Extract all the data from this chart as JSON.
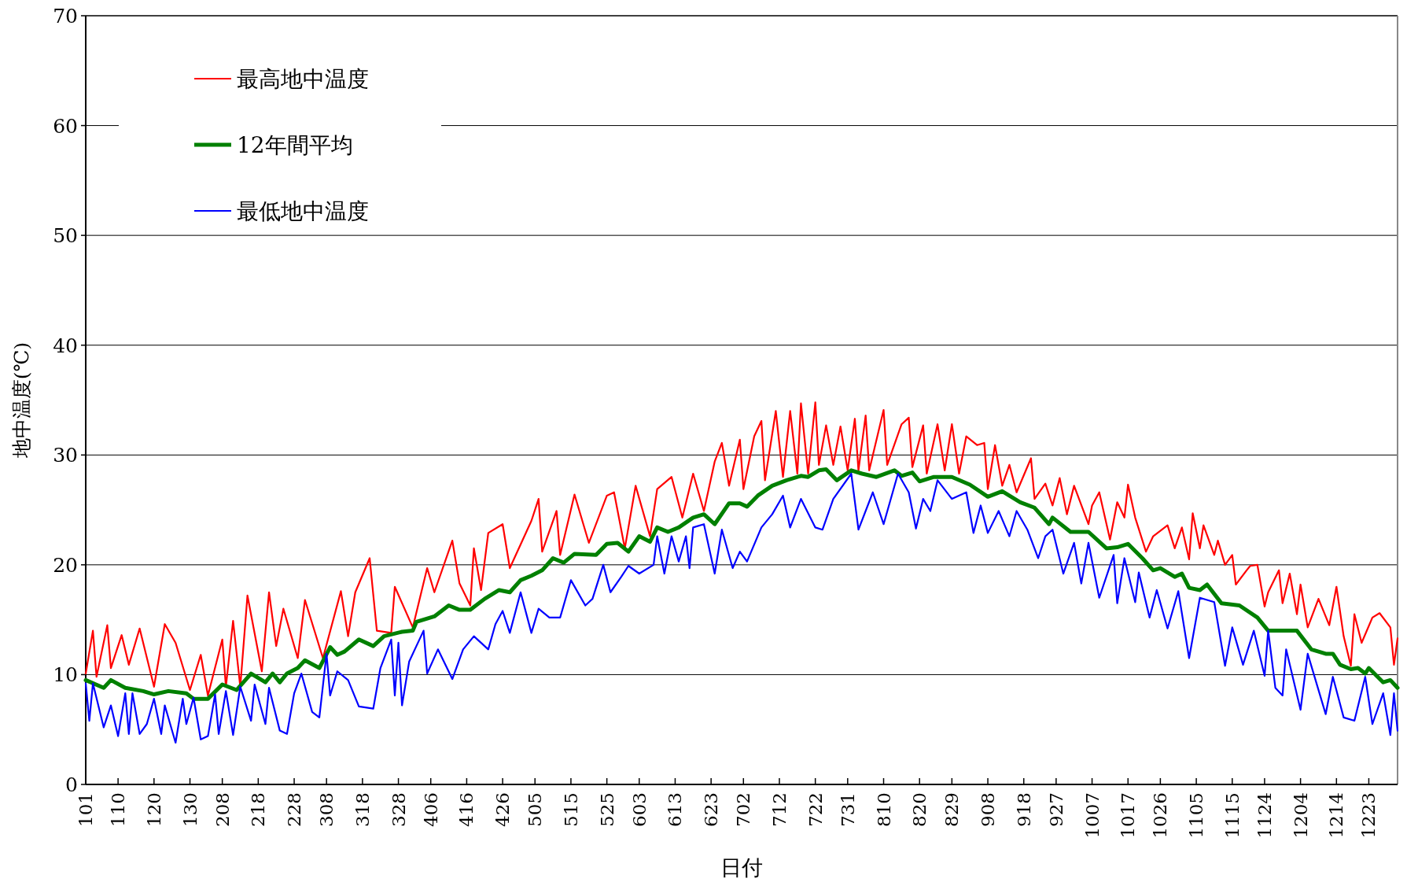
{
  "chart_data": {
    "type": "line",
    "xlabel": "日付",
    "ylabel": "地中温度(℃)",
    "xlim": [
      "--01-01",
      "--12-31"
    ],
    "ylim": [
      0,
      70
    ],
    "yticks": [
      0,
      10,
      20,
      30,
      40,
      50,
      60,
      70
    ],
    "xticks": [
      {
        "value": "--01-01",
        "label": "101"
      },
      {
        "value": "--01-10",
        "label": "110"
      },
      {
        "value": "--01-20",
        "label": "120"
      },
      {
        "value": "--01-30",
        "label": "130"
      },
      {
        "value": "--02-08",
        "label": "208"
      },
      {
        "value": "--02-18",
        "label": "218"
      },
      {
        "value": "--02-28",
        "label": "228"
      },
      {
        "value": "--03-08",
        "label": "308"
      },
      {
        "value": "--03-18",
        "label": "318"
      },
      {
        "value": "--03-28",
        "label": "328"
      },
      {
        "value": "--04-06",
        "label": "406"
      },
      {
        "value": "--04-16",
        "label": "416"
      },
      {
        "value": "--04-26",
        "label": "426"
      },
      {
        "value": "--05-05",
        "label": "505"
      },
      {
        "value": "--05-15",
        "label": "515"
      },
      {
        "value": "--05-25",
        "label": "525"
      },
      {
        "value": "--06-03",
        "label": "603"
      },
      {
        "value": "--06-13",
        "label": "613"
      },
      {
        "value": "--06-23",
        "label": "623"
      },
      {
        "value": "--07-02",
        "label": "702"
      },
      {
        "value": "--07-12",
        "label": "712"
      },
      {
        "value": "--07-22",
        "label": "722"
      },
      {
        "value": "--07-31",
        "label": "731"
      },
      {
        "value": "--08-10",
        "label": "810"
      },
      {
        "value": "--08-20",
        "label": "820"
      },
      {
        "value": "--08-29",
        "label": "829"
      },
      {
        "value": "--09-08",
        "label": "908"
      },
      {
        "value": "--09-18",
        "label": "918"
      },
      {
        "value": "--09-27",
        "label": "927"
      },
      {
        "value": "--10-07",
        "label": "1007"
      },
      {
        "value": "--10-17",
        "label": "1017"
      },
      {
        "value": "--10-26",
        "label": "1026"
      },
      {
        "value": "--11-05",
        "label": "1105"
      },
      {
        "value": "--11-15",
        "label": "1115"
      },
      {
        "value": "--11-24",
        "label": "1124"
      },
      {
        "value": "--12-04",
        "label": "1204"
      },
      {
        "value": "--12-14",
        "label": "1214"
      },
      {
        "value": "--12-23",
        "label": "1223"
      }
    ],
    "grid": "y",
    "legend": "top left",
    "line_style": "solid",
    "marker": "none",
    "series": [
      {
        "name": "最高地中温度",
        "color": "#ff0000",
        "x": [
          "--01-01",
          "--01-03",
          "--01-04",
          "--01-07",
          "--01-08",
          "--01-11",
          "--01-13",
          "--01-16",
          "--01-20",
          "--01-23",
          "--01-26",
          "--01-30",
          "--02-02",
          "--02-04",
          "--02-08",
          "--02-09",
          "--02-11",
          "--02-13",
          "--02-15",
          "--02-19",
          "--02-21",
          "--02-23",
          "--02-25",
          "--02-29",
          "--03-02",
          "--03-07",
          "--03-12",
          "--03-14",
          "--03-16",
          "--03-20",
          "--03-22",
          "--03-26",
          "--03-27",
          "--04-01",
          "--04-05",
          "--04-07",
          "--04-12",
          "--04-14",
          "--04-17",
          "--04-18",
          "--04-20",
          "--04-22",
          "--04-26",
          "--04-28",
          "--05-04",
          "--05-06",
          "--05-07",
          "--05-11",
          "--05-12",
          "--05-16",
          "--05-20",
          "--05-25",
          "--05-27",
          "--05-30",
          "--06-02",
          "--06-06",
          "--06-08",
          "--06-12",
          "--06-15",
          "--06-18",
          "--06-21",
          "--06-24",
          "--06-26",
          "--06-28",
          "--07-01",
          "--07-02",
          "--07-05",
          "--07-07",
          "--07-08",
          "--07-11",
          "--07-13",
          "--07-15",
          "--07-17",
          "--07-18",
          "--07-20",
          "--07-22",
          "--07-23",
          "--07-25",
          "--07-27",
          "--07-29",
          "--07-31",
          "--08-02",
          "--08-03",
          "--08-05",
          "--08-06",
          "--08-10",
          "--08-11",
          "--08-15",
          "--08-17",
          "--08-18",
          "--08-21",
          "--08-22",
          "--08-25",
          "--08-27",
          "--08-29",
          "--08-31",
          "--09-02",
          "--09-05",
          "--09-07",
          "--09-08",
          "--09-10",
          "--09-12",
          "--09-14",
          "--09-16",
          "--09-20",
          "--09-21",
          "--09-24",
          "--09-26",
          "--09-28",
          "--09-30",
          "--10-02",
          "--10-06",
          "--10-07",
          "--10-09",
          "--10-12",
          "--10-14",
          "--10-16",
          "--10-17",
          "--10-19",
          "--10-22",
          "--10-24",
          "--10-28",
          "--10-30",
          "--11-01",
          "--11-03",
          "--11-04",
          "--11-06",
          "--11-07",
          "--11-10",
          "--11-11",
          "--11-13",
          "--11-15",
          "--11-16",
          "--11-19",
          "--11-20",
          "--11-22",
          "--11-24",
          "--11-25",
          "--11-28",
          "--11-29",
          "--12-01",
          "--12-03",
          "--12-04",
          "--12-06",
          "--12-09",
          "--12-12",
          "--12-14",
          "--12-16",
          "--12-18",
          "--12-19",
          "--12-21",
          "--12-24",
          "--12-26",
          "--12-29",
          "--12-30",
          "--12-31"
        ],
        "values": [
          10.1,
          14.0,
          9.8,
          14.5,
          10.6,
          13.6,
          10.9,
          14.2,
          8.9,
          14.6,
          12.9,
          8.6,
          11.8,
          8.1,
          13.2,
          8.9,
          14.9,
          8.9,
          17.2,
          10.3,
          17.5,
          12.6,
          16.0,
          11.5,
          16.8,
          11.5,
          17.6,
          13.5,
          17.5,
          20.6,
          14.0,
          13.8,
          18.0,
          14.3,
          19.7,
          17.5,
          22.2,
          18.3,
          16.3,
          21.5,
          17.7,
          22.9,
          23.7,
          19.7,
          24.0,
          26.0,
          21.2,
          24.9,
          20.9,
          26.4,
          22.0,
          26.3,
          26.6,
          21.5,
          27.2,
          22.6,
          26.9,
          28.0,
          24.3,
          28.3,
          24.9,
          29.4,
          31.1,
          27.2,
          31.4,
          26.9,
          31.7,
          33.1,
          27.7,
          34.0,
          28.0,
          34.0,
          28.3,
          34.7,
          28.3,
          34.8,
          29.1,
          32.7,
          29.1,
          32.6,
          28.6,
          33.3,
          28.6,
          33.6,
          28.6,
          34.1,
          29.1,
          32.8,
          33.4,
          28.9,
          32.7,
          28.3,
          32.8,
          28.6,
          32.8,
          28.3,
          31.7,
          30.9,
          31.1,
          26.9,
          30.9,
          27.2,
          29.1,
          26.6,
          29.7,
          26.0,
          27.4,
          25.4,
          27.9,
          24.6,
          27.2,
          23.7,
          25.4,
          26.6,
          22.3,
          25.7,
          24.3,
          27.3,
          24.3,
          21.2,
          22.6,
          23.6,
          21.5,
          23.4,
          20.5,
          24.7,
          21.5,
          23.6,
          20.9,
          22.2,
          20.0,
          20.9,
          18.2,
          19.5,
          19.9,
          20.0,
          16.2,
          17.5,
          19.5,
          16.5,
          19.2,
          15.5,
          18.2,
          14.3,
          16.9,
          14.5,
          18.0,
          13.5,
          10.8,
          15.5,
          12.9,
          15.2,
          15.6,
          14.3,
          10.9,
          13.3
        ]
      },
      {
        "name": "12年間平均",
        "color": "#008000",
        "x": [
          "--01-01",
          "--01-06",
          "--01-08",
          "--01-12",
          "--01-17",
          "--01-20",
          "--01-24",
          "--01-29",
          "--01-31",
          "--02-04",
          "--02-08",
          "--02-12",
          "--02-16",
          "--02-20",
          "--02-22",
          "--02-24",
          "--02-26",
          "--02-29",
          "--03-02",
          "--03-06",
          "--03-09",
          "--03-11",
          "--03-13",
          "--03-17",
          "--03-21",
          "--03-24",
          "--03-29",
          "--04-01",
          "--04-02",
          "--04-07",
          "--04-11",
          "--04-14",
          "--04-17",
          "--04-21",
          "--04-25",
          "--04-28",
          "--05-01",
          "--05-04",
          "--05-07",
          "--05-10",
          "--05-13",
          "--05-16",
          "--05-22",
          "--05-25",
          "--05-28",
          "--05-31",
          "--06-03",
          "--06-06",
          "--06-08",
          "--06-11",
          "--06-14",
          "--06-18",
          "--06-21",
          "--06-24",
          "--06-28",
          "--07-01",
          "--07-03",
          "--07-06",
          "--07-10",
          "--07-14",
          "--07-18",
          "--07-20",
          "--07-23",
          "--07-25",
          "--07-28",
          "--08-01",
          "--08-04",
          "--08-08",
          "--08-13",
          "--08-15",
          "--08-18",
          "--08-20",
          "--08-24",
          "--08-29",
          "--09-03",
          "--09-08",
          "--09-12",
          "--09-17",
          "--09-21",
          "--09-25",
          "--09-26",
          "--10-01",
          "--10-06",
          "--10-11",
          "--10-14",
          "--10-17",
          "--10-21",
          "--10-24",
          "--10-26",
          "--10-30",
          "--11-01",
          "--11-03",
          "--11-06",
          "--11-08",
          "--11-12",
          "--11-17",
          "--11-22",
          "--11-25",
          "--11-29",
          "--12-03",
          "--12-07",
          "--12-11",
          "--12-13",
          "--12-15",
          "--12-18",
          "--12-20",
          "--12-22",
          "--12-23",
          "--12-27",
          "--12-29",
          "--12-31"
        ],
        "values": [
          9.5,
          8.8,
          9.5,
          8.8,
          8.5,
          8.2,
          8.5,
          8.3,
          7.8,
          7.8,
          9.1,
          8.6,
          10.1,
          9.3,
          10.1,
          9.3,
          10.1,
          10.6,
          11.3,
          10.6,
          12.5,
          11.8,
          12.1,
          13.2,
          12.6,
          13.5,
          13.9,
          14.0,
          14.8,
          15.3,
          16.3,
          15.9,
          15.9,
          16.9,
          17.7,
          17.5,
          18.6,
          19.0,
          19.5,
          20.6,
          20.2,
          21.0,
          20.9,
          21.9,
          22.0,
          21.2,
          22.6,
          22.1,
          23.4,
          23.0,
          23.4,
          24.3,
          24.6,
          23.7,
          25.6,
          25.6,
          25.3,
          26.3,
          27.2,
          27.7,
          28.1,
          28.0,
          28.6,
          28.7,
          27.7,
          28.6,
          28.3,
          28.0,
          28.6,
          28.1,
          28.4,
          27.6,
          28.0,
          28.0,
          27.3,
          26.2,
          26.7,
          25.7,
          25.2,
          23.7,
          24.3,
          23.0,
          23.0,
          21.5,
          21.6,
          21.9,
          20.6,
          19.5,
          19.7,
          18.9,
          19.2,
          17.9,
          17.7,
          18.2,
          16.5,
          16.3,
          15.2,
          14.0,
          14.0,
          14.0,
          12.3,
          11.9,
          11.9,
          10.9,
          10.5,
          10.6,
          10.1,
          10.6,
          9.3,
          9.5,
          8.8
        ]
      },
      {
        "name": "最低地中温度",
        "color": "#0000ff",
        "x": [
          "--01-01",
          "--01-02",
          "--01-03",
          "--01-06",
          "--01-08",
          "--01-10",
          "--01-12",
          "--01-13",
          "--01-14",
          "--01-16",
          "--01-18",
          "--01-20",
          "--01-22",
          "--01-23",
          "--01-26",
          "--01-28",
          "--01-29",
          "--01-31",
          "--02-02",
          "--02-04",
          "--02-06",
          "--02-07",
          "--02-09",
          "--02-11",
          "--02-13",
          "--02-16",
          "--02-17",
          "--02-20",
          "--02-21",
          "--02-24",
          "--02-26",
          "--02-28",
          "--03-01",
          "--03-04",
          "--03-06",
          "--03-08",
          "--03-09",
          "--03-11",
          "--03-14",
          "--03-17",
          "--03-21",
          "--03-23",
          "--03-26",
          "--03-27",
          "--03-28",
          "--03-29",
          "--03-31",
          "--04-02",
          "--04-04",
          "--04-05",
          "--04-08",
          "--04-12",
          "--04-15",
          "--04-18",
          "--04-22",
          "--04-24",
          "--04-26",
          "--04-28",
          "--05-01",
          "--05-04",
          "--05-06",
          "--05-09",
          "--05-12",
          "--05-15",
          "--05-19",
          "--05-21",
          "--05-24",
          "--05-26",
          "--05-29",
          "--05-31",
          "--06-03",
          "--06-07",
          "--06-08",
          "--06-10",
          "--06-12",
          "--06-14",
          "--06-16",
          "--06-17",
          "--06-18",
          "--06-21",
          "--06-24",
          "--06-26",
          "--06-29",
          "--07-01",
          "--07-03",
          "--07-07",
          "--07-10",
          "--07-13",
          "--07-15",
          "--07-18",
          "--07-22",
          "--07-24",
          "--07-27",
          "--08-01",
          "--08-03",
          "--08-07",
          "--08-10",
          "--08-14",
          "--08-17",
          "--08-19",
          "--08-21",
          "--08-23",
          "--08-25",
          "--08-29",
          "--09-02",
          "--09-04",
          "--09-06",
          "--09-08",
          "--09-11",
          "--09-14",
          "--09-16",
          "--09-19",
          "--09-22",
          "--09-24",
          "--09-26",
          "--09-29",
          "--10-02",
          "--10-04",
          "--10-06",
          "--10-09",
          "--10-13",
          "--10-14",
          "--10-16",
          "--10-19",
          "--10-20",
          "--10-23",
          "--10-25",
          "--10-28",
          "--10-31",
          "--11-03",
          "--11-06",
          "--11-10",
          "--11-13",
          "--11-15",
          "--11-18",
          "--11-21",
          "--11-24",
          "--11-25",
          "--11-27",
          "--11-29",
          "--11-30",
          "--12-04",
          "--12-06",
          "--12-11",
          "--12-13",
          "--12-16",
          "--12-19",
          "--12-22",
          "--12-24",
          "--12-27",
          "--12-29",
          "--12-30",
          "--12-31"
        ],
        "values": [
          9.2,
          5.8,
          9.2,
          5.2,
          7.2,
          4.4,
          8.3,
          4.6,
          8.3,
          4.6,
          5.5,
          7.8,
          4.6,
          7.2,
          3.8,
          7.8,
          5.5,
          7.9,
          4.1,
          4.4,
          8.2,
          4.6,
          8.5,
          4.5,
          8.9,
          5.8,
          9.1,
          5.5,
          8.8,
          4.9,
          4.6,
          8.3,
          10.1,
          6.6,
          6.1,
          11.9,
          8.1,
          10.3,
          9.5,
          7.1,
          6.9,
          10.6,
          13.2,
          8.1,
          12.9,
          7.2,
          11.2,
          12.6,
          14.0,
          10.1,
          12.3,
          9.6,
          12.3,
          13.5,
          12.3,
          14.6,
          15.8,
          13.8,
          17.5,
          13.8,
          16.0,
          15.2,
          15.2,
          18.6,
          16.3,
          16.9,
          20.0,
          17.5,
          18.9,
          19.9,
          19.2,
          20.0,
          22.6,
          19.2,
          22.6,
          20.3,
          22.6,
          19.7,
          23.4,
          23.7,
          19.2,
          23.2,
          19.7,
          21.2,
          20.3,
          23.4,
          24.6,
          26.3,
          23.4,
          26.0,
          23.4,
          23.2,
          26.0,
          28.3,
          23.2,
          26.6,
          23.7,
          28.3,
          26.6,
          23.3,
          26.0,
          24.9,
          27.7,
          26.0,
          26.6,
          22.9,
          25.4,
          22.9,
          24.9,
          22.6,
          24.9,
          23.2,
          20.6,
          22.6,
          23.2,
          19.2,
          22.0,
          18.3,
          22.0,
          17.0,
          20.9,
          16.5,
          20.6,
          16.6,
          19.3,
          15.2,
          17.7,
          14.2,
          17.6,
          11.5,
          17.0,
          16.6,
          10.8,
          14.3,
          10.9,
          14.0,
          9.9,
          14.0,
          8.8,
          8.1,
          12.3,
          6.8,
          11.9,
          6.4,
          9.8,
          6.1,
          5.8,
          9.8,
          5.5,
          8.3,
          4.5,
          8.3,
          4.9
        ]
      }
    ]
  }
}
